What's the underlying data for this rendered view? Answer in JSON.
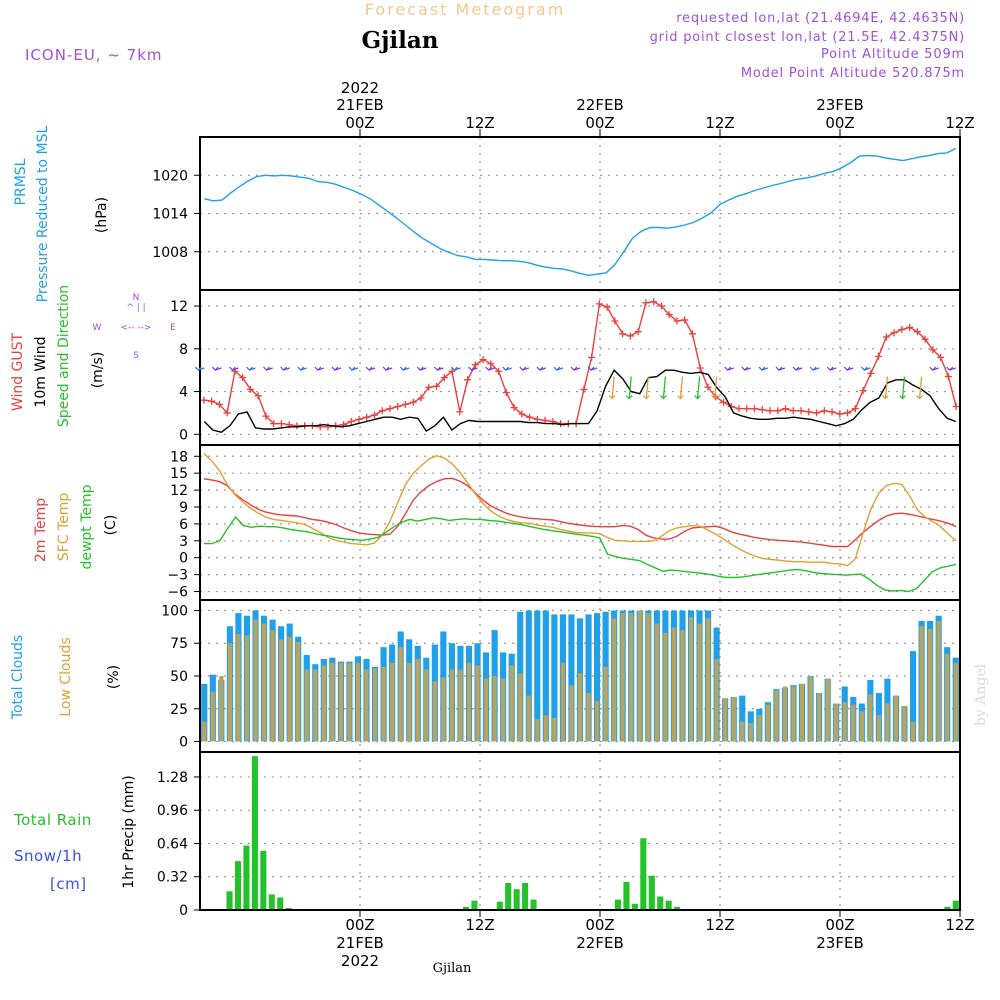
{
  "header": {
    "product": "Forecast Meteogram",
    "location": "Gjilan",
    "model": "ICON-EU, ~ 7km",
    "requested": "requested lon,lat (21.4694E, 42.4635N)",
    "grid": "grid point closest lon,lat (21.5E, 42.4375N)",
    "point_alt": "Point Altitude 509m",
    "model_alt": "Model Point Altitude 520.875m",
    "footer_location": "Gjilan",
    "credit": "by Angel"
  },
  "time_axis": {
    "hours_total": 76,
    "top_ticks": [
      {
        "h": 16,
        "label": "00Z",
        "date": "21FEB",
        "year": "2022"
      },
      {
        "h": 28,
        "label": "12Z",
        "date": "",
        "year": ""
      },
      {
        "h": 40,
        "label": "00Z",
        "date": "22FEB",
        "year": ""
      },
      {
        "h": 52,
        "label": "12Z",
        "date": "",
        "year": ""
      },
      {
        "h": 64,
        "label": "00Z",
        "date": "23FEB",
        "year": ""
      },
      {
        "h": 76,
        "label": "12Z",
        "date": "",
        "year": ""
      }
    ]
  },
  "colors": {
    "blue": "#1fa0e8",
    "red": "#e8413d",
    "orange": "#e0a030",
    "green": "#24c22a",
    "purple": "#a050d8",
    "black": "#000000",
    "orange_title": "#f5c98c",
    "snow_blue": "#3a4fe6",
    "olive_bar": "#b8a460",
    "grid": "#9a9a9a"
  },
  "chart_data": [
    {
      "type": "line",
      "title": "PRMSL Pressure Reduced to MSL",
      "label_lines": [
        "PRMSL",
        "Pressure Reduced to MSL"
      ],
      "ylabel": "(hPa)",
      "ylim": [
        1002,
        1026
      ],
      "yticks": [
        1008,
        1014,
        1020
      ],
      "series": [
        {
          "name": "PRMSL",
          "color": "#1fa0e8",
          "values": [
            1016.3,
            1016.0,
            1016.1,
            1017.2,
            1018.2,
            1019.1,
            1019.8,
            1020.0,
            1019.9,
            1020.0,
            1019.9,
            1019.7,
            1019.5,
            1019.0,
            1018.9,
            1018.6,
            1018.1,
            1017.6,
            1017.0,
            1016.3,
            1015.3,
            1014.3,
            1013.3,
            1012.2,
            1011.1,
            1010.1,
            1009.3,
            1008.5,
            1007.9,
            1007.4,
            1007.2,
            1006.8,
            1006.8,
            1006.7,
            1006.6,
            1006.6,
            1006.5,
            1006.3,
            1005.9,
            1005.6,
            1005.4,
            1005.3,
            1005.0,
            1004.6,
            1004.3,
            1004.5,
            1004.7,
            1006.0,
            1008.0,
            1010.1,
            1011.2,
            1011.8,
            1011.8,
            1011.7,
            1011.9,
            1012.2,
            1012.6,
            1013.3,
            1014.1,
            1015.4,
            1016.1,
            1016.7,
            1017.1,
            1017.6,
            1018.0,
            1018.4,
            1018.7,
            1019.1,
            1019.4,
            1019.6,
            1019.9,
            1020.3,
            1020.6,
            1021.2,
            1022.0,
            1023.0,
            1023.1,
            1023.0,
            1022.7,
            1022.5,
            1022.3,
            1022.6,
            1022.9,
            1023.1,
            1023.4,
            1023.5,
            1024.2
          ]
        }
      ]
    },
    {
      "type": "line",
      "title": "Wind GUST / 10m Wind Speed and Direction",
      "label_lines": [
        "Wind GUST",
        "10m Wind",
        "Speed and Direction"
      ],
      "compass": [
        "N",
        "W",
        "E",
        "S"
      ],
      "ylabel": "(m/s)",
      "ylim": [
        -1,
        13.5
      ],
      "yticks": [
        0,
        4,
        8,
        12
      ],
      "series": [
        {
          "name": "Wind GUST",
          "color": "#e8413d",
          "markers": "plus",
          "values": [
            3.2,
            3.1,
            2.8,
            2.0,
            5.9,
            5.3,
            4.2,
            3.6,
            1.7,
            1.0,
            1.0,
            0.9,
            0.8,
            0.8,
            0.8,
            0.7,
            0.7,
            0.8,
            0.9,
            1.2,
            1.4,
            1.6,
            1.8,
            2.2,
            2.4,
            2.6,
            2.8,
            3.0,
            3.4,
            4.4,
            4.5,
            5.3,
            5.9,
            2.1,
            5.1,
            6.5,
            7.0,
            6.6,
            5.9,
            3.9,
            2.5,
            1.9,
            1.6,
            1.4,
            1.3,
            1.2,
            1.0,
            1.0,
            1.0,
            4.2,
            7.2,
            12.2,
            11.9,
            10.6,
            9.4,
            9.2,
            9.6,
            12.3,
            12.4,
            12.0,
            11.2,
            10.6,
            10.7,
            9.4,
            6.2,
            4.4,
            3.5,
            3.0,
            2.6,
            2.4,
            2.4,
            2.4,
            2.3,
            2.2,
            2.2,
            2.4,
            2.2,
            2.2,
            2.1,
            2.0,
            2.2,
            2.1,
            1.9,
            2.0,
            2.4,
            4.1,
            5.7,
            7.3,
            9.1,
            9.5,
            9.8,
            10.0,
            9.6,
            8.9,
            7.9,
            7.2,
            5.4,
            2.6
          ]
        },
        {
          "name": "10m Wind",
          "color": "#000000",
          "values": [
            1.2,
            0.4,
            0.2,
            0.8,
            1.9,
            2.1,
            0.6,
            0.5,
            0.5,
            0.6,
            0.7,
            0.7,
            0.8,
            0.8,
            0.9,
            0.8,
            0.7,
            0.8,
            1.0,
            1.2,
            1.4,
            1.6,
            1.6,
            1.4,
            1.6,
            1.5,
            0.3,
            0.8,
            1.6,
            0.4,
            1.0,
            1.3,
            1.2,
            1.2,
            1.2,
            1.2,
            1.2,
            1.2,
            1.1,
            1.1,
            1.0,
            1.0,
            0.9,
            1.0,
            1.0,
            1.0,
            2.2,
            4.5,
            6.0,
            5.2,
            4.0,
            3.8,
            5.3,
            5.4,
            6.0,
            6.0,
            5.8,
            5.7,
            5.8,
            5.6,
            4.4,
            3.5,
            2.0,
            1.7,
            1.5,
            1.4,
            1.4,
            1.5,
            1.5,
            1.6,
            1.5,
            1.4,
            1.2,
            1.0,
            0.8,
            1.0,
            1.4,
            2.3,
            3.0,
            3.4,
            4.8,
            5.1,
            5.1,
            4.6,
            4.2,
            3.6,
            2.4,
            1.5,
            1.2
          ]
        }
      ]
    },
    {
      "type": "line",
      "title": "2m Temp / SFC Temp / dewpt Temp",
      "label_lines": [
        "2m Temp",
        "SFC Temp",
        "dewpt Temp"
      ],
      "ylabel": "(C)",
      "ylim": [
        -7.5,
        20
      ],
      "yticks": [
        -6,
        -3,
        0,
        3,
        6,
        9,
        12,
        15,
        18
      ],
      "series": [
        {
          "name": "2m Temp",
          "color": "#e8413d",
          "values": [
            14.0,
            13.8,
            13.5,
            12.8,
            11.3,
            10.3,
            9.4,
            8.6,
            8.1,
            7.8,
            7.6,
            7.5,
            7.4,
            7.1,
            6.8,
            6.6,
            6.3,
            5.9,
            5.3,
            4.8,
            4.4,
            4.2,
            4.1,
            4.0,
            4.2,
            5.6,
            7.8,
            10.2,
            11.7,
            12.8,
            13.5,
            14.0,
            14.1,
            13.6,
            12.8,
            11.5,
            10.2,
            9.2,
            8.5,
            7.9,
            7.5,
            7.2,
            7.0,
            6.9,
            6.8,
            6.7,
            6.4,
            6.1,
            5.9,
            5.7,
            5.6,
            5.5,
            5.5,
            5.5,
            5.7,
            5.6,
            5.0,
            4.0,
            3.5,
            3.3,
            3.3,
            3.8,
            4.7,
            5.3,
            5.4,
            5.5,
            5.6,
            5.2,
            4.6,
            4.2,
            3.9,
            3.6,
            3.4,
            3.2,
            3.1,
            3.0,
            2.9,
            2.8,
            2.6,
            2.4,
            2.2,
            2.0,
            2.0,
            2.0,
            3.2,
            4.5,
            5.6,
            6.6,
            7.4,
            7.8,
            7.9,
            7.7,
            7.4,
            7.1,
            6.8,
            6.5,
            6.1,
            5.5
          ]
        },
        {
          "name": "SFC Temp",
          "color": "#e0a030",
          "values": [
            18.5,
            17.2,
            15.5,
            13.0,
            11.2,
            9.9,
            8.8,
            7.9,
            7.2,
            6.8,
            6.6,
            6.4,
            6.2,
            5.9,
            5.2,
            4.5,
            3.6,
            3.1,
            2.8,
            2.5,
            2.4,
            2.3,
            2.6,
            4.0,
            6.5,
            9.8,
            13.0,
            15.0,
            16.3,
            17.5,
            18.1,
            17.7,
            16.7,
            15.2,
            13.3,
            11.3,
            9.6,
            8.3,
            7.4,
            6.8,
            6.4,
            6.2,
            6.1,
            5.8,
            5.6,
            5.4,
            5.0,
            4.7,
            4.5,
            4.4,
            4.4,
            4.3,
            3.6,
            3.1,
            3.0,
            2.9,
            2.9,
            2.9,
            3.0,
            3.8,
            4.8,
            5.3,
            5.5,
            5.7,
            5.6,
            4.9,
            4.2,
            3.3,
            2.4,
            1.6,
            0.9,
            0.3,
            -0.1,
            -0.3,
            -0.4,
            -0.6,
            -0.7,
            -0.7,
            -0.8,
            -0.8,
            -0.8,
            -1.0,
            -1.1,
            -1.4,
            -0.2,
            4.4,
            8.6,
            11.4,
            12.8,
            13.2,
            13.0,
            11.0,
            8.5,
            7.2,
            6.4,
            5.5,
            4.2,
            3.0
          ]
        },
        {
          "name": "dewpt Temp",
          "color": "#24c22a",
          "values": [
            2.5,
            2.5,
            3.0,
            5.2,
            7.2,
            5.7,
            5.4,
            5.6,
            5.5,
            5.5,
            5.3,
            5.0,
            4.8,
            4.6,
            4.3,
            4.0,
            3.8,
            3.5,
            3.3,
            3.2,
            3.1,
            3.3,
            3.6,
            4.5,
            5.5,
            6.3,
            6.8,
            6.5,
            6.8,
            7.1,
            6.9,
            6.6,
            6.8,
            6.9,
            6.8,
            6.8,
            6.6,
            6.5,
            6.3,
            6.1,
            5.9,
            5.6,
            5.3,
            5.0,
            4.8,
            4.6,
            4.4,
            4.2,
            4.0,
            3.8,
            3.5,
            0.6,
            0.2,
            -0.1,
            -0.3,
            -0.5,
            -1.2,
            -1.8,
            -2.4,
            -2.2,
            -2.3,
            -2.5,
            -2.6,
            -2.8,
            -3.0,
            -3.3,
            -3.5,
            -3.5,
            -3.4,
            -3.2,
            -3.0,
            -2.8,
            -2.6,
            -2.4,
            -2.2,
            -2.1,
            -2.3,
            -2.6,
            -2.8,
            -2.9,
            -3.0,
            -3.1,
            -3.0,
            -2.9,
            -3.8,
            -4.9,
            -5.7,
            -5.9,
            -5.8,
            -6.0,
            -5.5,
            -4.0,
            -2.5,
            -1.8,
            -1.5,
            -1.2
          ]
        }
      ]
    },
    {
      "type": "bar",
      "title": "Total Clouds / Low Clouds",
      "label_lines": [
        "Total Clouds",
        "Low Clouds"
      ],
      "ylabel": "(%)",
      "ylim": [
        -8,
        108
      ],
      "yticks": [
        0,
        25,
        50,
        75,
        100
      ],
      "series": [
        {
          "name": "Total Clouds",
          "color": "#1fa0e8",
          "values": [
            44,
            51,
            47,
            88,
            98,
            96,
            100,
            96,
            93,
            88,
            90,
            80,
            66,
            59,
            63,
            64,
            61,
            61,
            65,
            63,
            57,
            72,
            74,
            84,
            78,
            73,
            64,
            74,
            84,
            75,
            73,
            73,
            75,
            68,
            85,
            68,
            67,
            99,
            100,
            100,
            100,
            97,
            97,
            97,
            94,
            97,
            98,
            99,
            100,
            100,
            100,
            100,
            100,
            100,
            100,
            100,
            100,
            100,
            100,
            100,
            87,
            33,
            34,
            35,
            23,
            25,
            30,
            40,
            41,
            43,
            44,
            50,
            37,
            48,
            29,
            42,
            34,
            29,
            47,
            37,
            48,
            35,
            27,
            69,
            92,
            92,
            96,
            72,
            64
          ]
        },
        {
          "name": "Low Clouds",
          "color": "#b8a460",
          "values": [
            15,
            38,
            50,
            75,
            82,
            81,
            93,
            90,
            85,
            78,
            80,
            76,
            55,
            55,
            58,
            60,
            60,
            60,
            60,
            55,
            56,
            57,
            60,
            72,
            60,
            63,
            55,
            46,
            49,
            55,
            55,
            60,
            58,
            48,
            50,
            48,
            58,
            52,
            35,
            17,
            20,
            18,
            60,
            43,
            52,
            37,
            31,
            57,
            94,
            98,
            98,
            100,
            98,
            90,
            83,
            87,
            85,
            95,
            90,
            94,
            63,
            33,
            34,
            15,
            14,
            20,
            28,
            39,
            42,
            42,
            44,
            50,
            37,
            48,
            29,
            30,
            28,
            23,
            36,
            20,
            29,
            35,
            27,
            15,
            88,
            86,
            92,
            67,
            60
          ]
        }
      ]
    },
    {
      "type": "bar",
      "title": "Total Rain Snow/1h [cm] 1hr Precip (mm)",
      "label_lines": [
        "Total  Rain",
        "Snow/1h",
        "[cm]"
      ],
      "ylabel": "1hr Precip (mm)",
      "ylim": [
        0,
        1.52
      ],
      "yticks": [
        0,
        0.32,
        0.64,
        0.96,
        1.28
      ],
      "series": [
        {
          "name": "Total Rain",
          "color": "#24c22a",
          "values": [
            0,
            0,
            0,
            0.18,
            0.47,
            0.62,
            1.48,
            0.57,
            0.15,
            0.12,
            0.02,
            0,
            0,
            0,
            0,
            0,
            0,
            0,
            0,
            0,
            0,
            0,
            0,
            0,
            0,
            0,
            0,
            0,
            0,
            0,
            0,
            0.03,
            0.09,
            0,
            0.01,
            0.08,
            0.26,
            0.2,
            0.26,
            0.1,
            0,
            0,
            0,
            0,
            0,
            0,
            0,
            0,
            0,
            0.1,
            0.27,
            0.06,
            0.69,
            0.33,
            0.13,
            0.09,
            0.03,
            0,
            0,
            0,
            0,
            0,
            0,
            0,
            0,
            0,
            0,
            0,
            0,
            0,
            0,
            0,
            0,
            0,
            0,
            0,
            0,
            0,
            0,
            0,
            0,
            0,
            0,
            0,
            0,
            0,
            0,
            0.01,
            0.03,
            0.09
          ]
        },
        {
          "name": "Snow/1h",
          "color": "#3a4fe6",
          "values": []
        }
      ]
    }
  ]
}
